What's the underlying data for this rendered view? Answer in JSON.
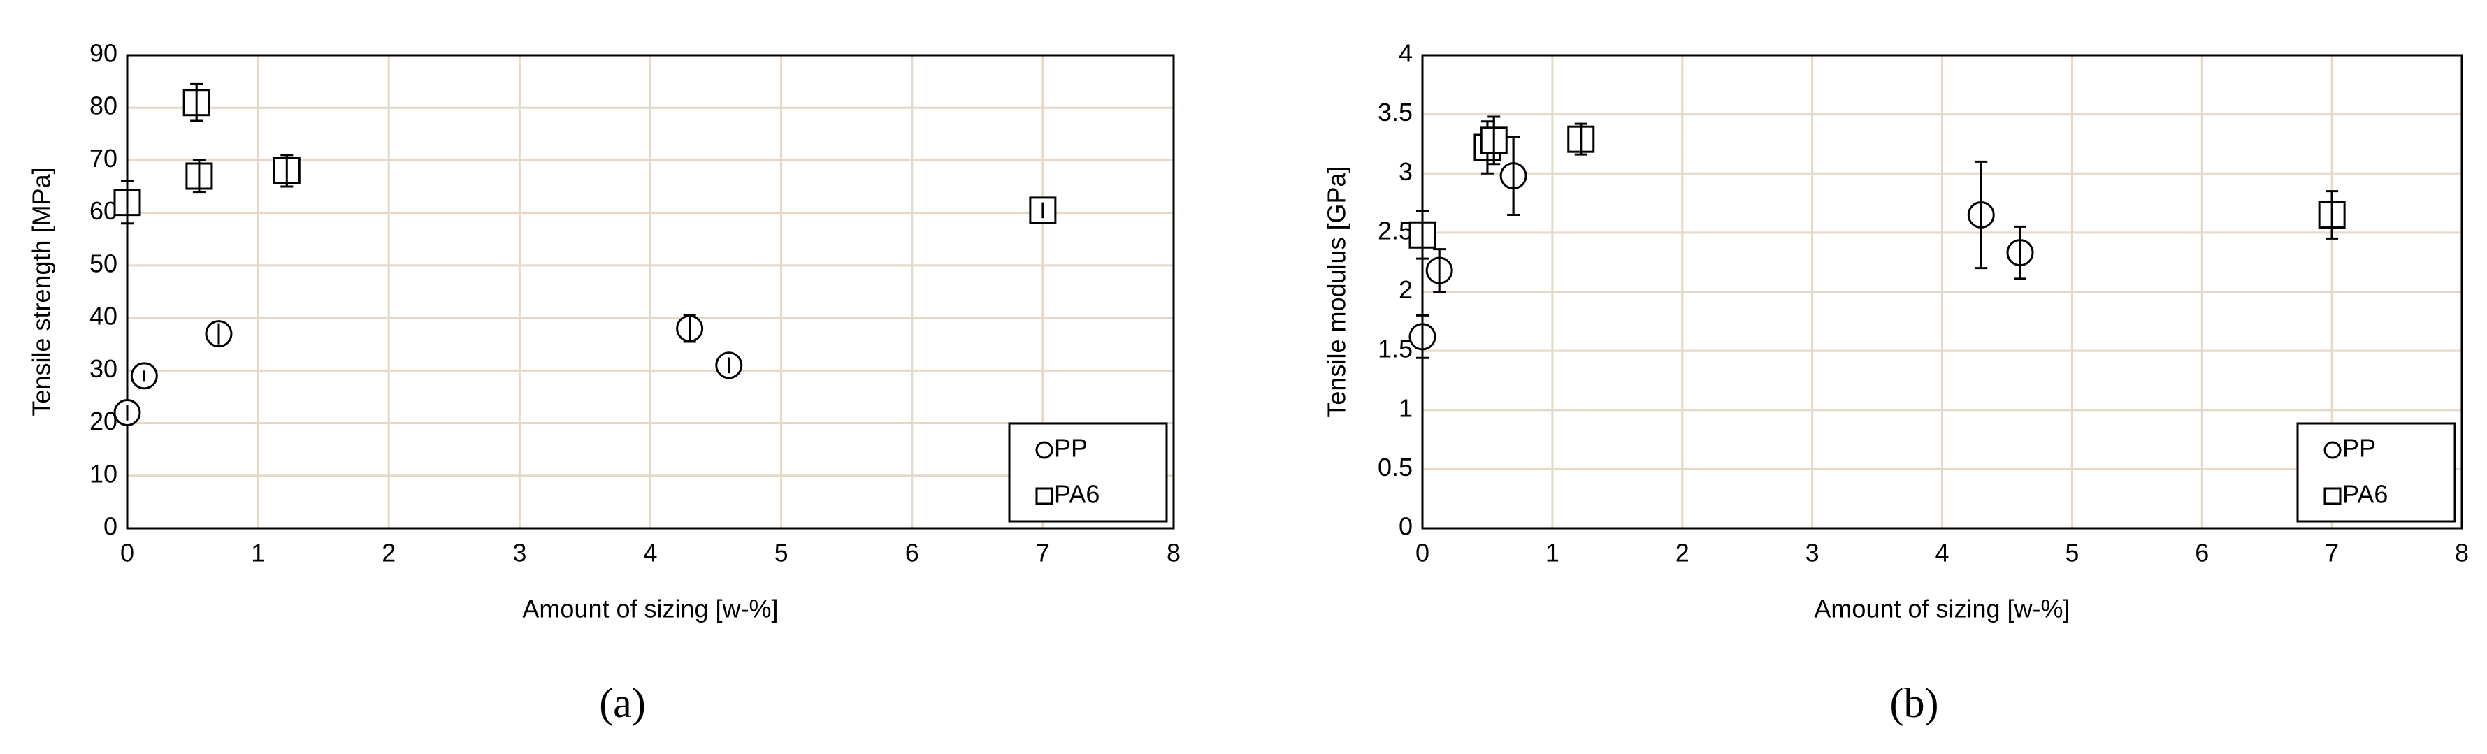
{
  "chart_data": [
    {
      "type": "scatter",
      "label": "(a)",
      "x_label": "Amount of sizing [w-%]",
      "y_label": "Tensile strength [MPa]",
      "xlim": [
        0,
        8
      ],
      "xticks": [
        0,
        1,
        2,
        3,
        4,
        5,
        6,
        7,
        8
      ],
      "ylim": [
        0,
        90
      ],
      "yticks": [
        0,
        10,
        20,
        30,
        40,
        50,
        60,
        70,
        80,
        90
      ],
      "grid": true,
      "legend": "lower right",
      "series": [
        {
          "name": "PP",
          "marker": "circle",
          "color": "#000000",
          "x": [
            0,
            0.13,
            0.7,
            4.3,
            4.6
          ],
          "values": [
            22,
            29,
            37,
            38,
            31
          ],
          "errors": [
            1.5,
            1,
            2,
            2.5,
            1.5
          ]
        },
        {
          "name": "PA6",
          "marker": "square",
          "color": "#000000",
          "x": [
            0,
            0.53,
            0.55,
            1.22,
            7
          ],
          "values": [
            62,
            81,
            67,
            68,
            60.5
          ],
          "errors": [
            4,
            3.5,
            3,
            3,
            1.5
          ]
        }
      ]
    },
    {
      "type": "scatter",
      "label": "(b)",
      "x_label": "Amount of sizing [w-%]",
      "y_label": "Tensile modulus [GPa]",
      "xlim": [
        0,
        8
      ],
      "xticks": [
        0,
        1,
        2,
        3,
        4,
        5,
        6,
        7,
        8
      ],
      "ylim": [
        0,
        4
      ],
      "yticks": [
        0,
        0.5,
        1,
        1.5,
        2,
        2.5,
        3,
        3.5,
        4
      ],
      "grid": true,
      "legend": "lower right",
      "series": [
        {
          "name": "PP",
          "marker": "circle",
          "color": "#000000",
          "x": [
            0,
            0.13,
            0.7,
            4.3,
            4.6
          ],
          "values": [
            1.62,
            2.18,
            2.98,
            2.65,
            2.33
          ],
          "errors": [
            0.18,
            0.18,
            0.33,
            0.45,
            0.22
          ]
        },
        {
          "name": "PA6",
          "marker": "square",
          "color": "#000000",
          "x": [
            0,
            0.5,
            0.55,
            1.22,
            7
          ],
          "values": [
            2.48,
            3.22,
            3.28,
            3.29,
            2.65
          ],
          "errors": [
            0.2,
            0.22,
            0.2,
            0.13,
            0.2
          ]
        }
      ]
    }
  ]
}
